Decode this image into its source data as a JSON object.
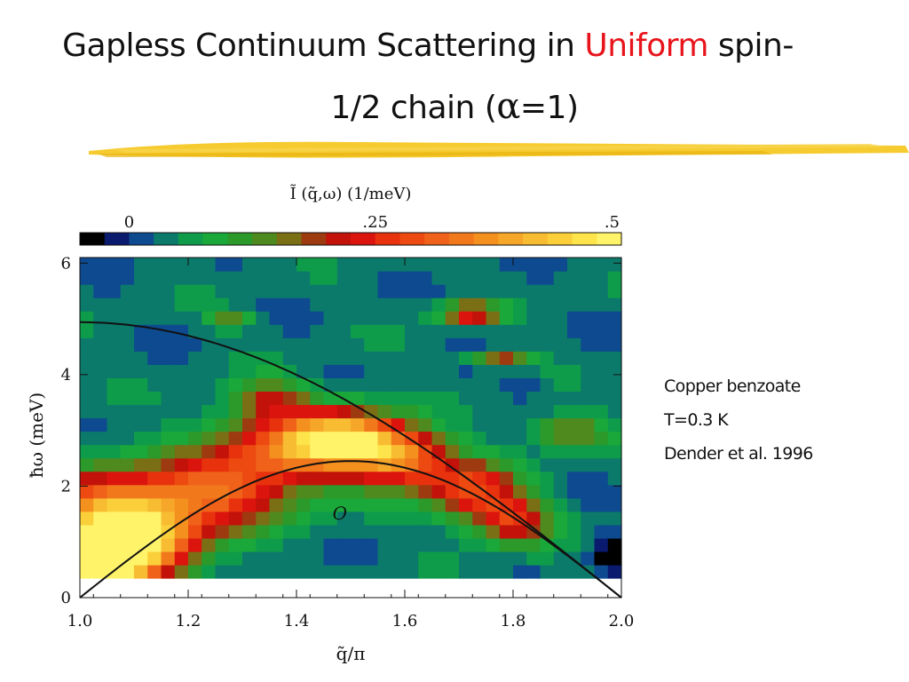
{
  "slide": {
    "title_part1": "Gapless Continuum Scattering in ",
    "title_accent": "Uniform",
    "title_part2": " spin-",
    "title_line2_pre": "1/2 chain (",
    "title_alpha": "α",
    "title_line2_post": "=1)",
    "accent_color": "#e8141b",
    "rule_color": "#f5c518",
    "notes": [
      "Copper benzoate",
      "T=0.3 K",
      "Dender et al. 1996"
    ]
  },
  "chart_data": {
    "type": "heatmap",
    "colorbar_label": "Ĩ (q̃,ω)  (1/meV)",
    "colorbar_ticks": [
      "0",
      ".25",
      ".5"
    ],
    "colorbar_tick_values": [
      0,
      0.25,
      0.5
    ],
    "colorbar_range": [
      -0.05,
      0.5
    ],
    "colorbar_colors": [
      "#000000",
      "#0a1a6e",
      "#0d4a8f",
      "#0b7a6b",
      "#0f9c4a",
      "#1aa83a",
      "#2b9a2a",
      "#4e8a1e",
      "#7a6f14",
      "#9e3a10",
      "#c2120a",
      "#dc140e",
      "#e8320e",
      "#ec4a10",
      "#f0621a",
      "#f2781c",
      "#f4901e",
      "#f6a628",
      "#f8bc32",
      "#facf3a",
      "#fce44a",
      "#fff36a"
    ],
    "xlabel": "q̃/π",
    "ylabel": "ħω (meV)",
    "xlim": [
      1.0,
      2.0
    ],
    "ylim": [
      0,
      6.1
    ],
    "xticks": [
      "1.0",
      "1.2",
      "1.4",
      "1.6",
      "1.8",
      "2.0"
    ],
    "yticks": [
      "0",
      "2",
      "4",
      "6"
    ],
    "data_y_range": [
      0.35,
      6.1
    ],
    "annotation": "O",
    "annotation_pos": [
      1.48,
      1.4
    ],
    "series": [
      {
        "x": [
          1.0,
          1.1,
          1.2,
          1.3,
          1.4,
          1.5,
          1.6,
          1.7,
          1.8,
          1.9,
          2.0
        ],
        "y": [
          4.94,
          4.87,
          4.69,
          4.38,
          3.97,
          3.47,
          2.88,
          2.24,
          1.53,
          0.77,
          0.0
        ]
      },
      {
        "x": [
          1.0,
          1.1,
          1.2,
          1.3,
          1.4,
          1.5,
          1.6,
          1.7,
          1.8,
          1.9,
          2.0
        ],
        "y": [
          0.0,
          0.76,
          1.44,
          1.98,
          2.33,
          2.45,
          2.33,
          1.98,
          1.44,
          0.76,
          0.0
        ]
      }
    ],
    "heat_peaks": [
      {
        "x": 1.02,
        "y": 0.55,
        "v": 0.55,
        "sx": 0.06,
        "sy": 0.35
      },
      {
        "x": 1.1,
        "y": 1.0,
        "v": 0.38,
        "sx": 0.08,
        "sy": 0.45
      },
      {
        "x": 1.05,
        "y": 1.6,
        "v": 0.26,
        "sx": 0.1,
        "sy": 0.5
      },
      {
        "x": 1.25,
        "y": 1.9,
        "v": 0.24,
        "sx": 0.1,
        "sy": 0.45
      },
      {
        "x": 1.4,
        "y": 2.7,
        "v": 0.28,
        "sx": 0.1,
        "sy": 0.45
      },
      {
        "x": 1.5,
        "y": 2.85,
        "v": 0.3,
        "sx": 0.07,
        "sy": 0.35
      },
      {
        "x": 1.6,
        "y": 2.5,
        "v": 0.26,
        "sx": 0.06,
        "sy": 0.35
      },
      {
        "x": 1.72,
        "y": 1.95,
        "v": 0.24,
        "sx": 0.06,
        "sy": 0.35
      },
      {
        "x": 1.8,
        "y": 1.4,
        "v": 0.22,
        "sx": 0.05,
        "sy": 0.3
      },
      {
        "x": 1.72,
        "y": 5.1,
        "v": 0.22,
        "sx": 0.04,
        "sy": 0.14
      },
      {
        "x": 1.35,
        "y": 3.6,
        "v": 0.14,
        "sx": 0.05,
        "sy": 0.25
      },
      {
        "x": 1.78,
        "y": 4.3,
        "v": 0.16,
        "sx": 0.04,
        "sy": 0.1
      },
      {
        "x": 1.9,
        "y": 3.0,
        "v": 0.14,
        "sx": 0.05,
        "sy": 0.2
      },
      {
        "x": 1.28,
        "y": 5.0,
        "v": 0.12,
        "sx": 0.03,
        "sy": 0.12
      },
      {
        "x": 1.98,
        "y": 0.8,
        "v": -0.08,
        "sx": 0.03,
        "sy": 0.25
      },
      {
        "x": 1.82,
        "y": 3.8,
        "v": -0.04,
        "sx": 0.03,
        "sy": 0.12
      }
    ]
  }
}
